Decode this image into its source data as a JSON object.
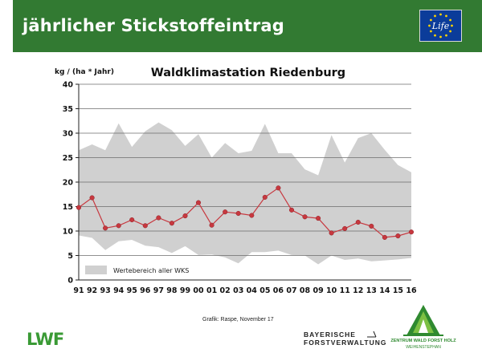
{
  "header": {
    "title": "jährlicher Stickstoffeintrag",
    "band_color": "#327a32",
    "logo_text": "Life",
    "logo_icon": "eu-life-logo"
  },
  "chart_data": {
    "type": "area",
    "title": "Waldklimastation Riedenburg",
    "ylabel": "kg / (ha * Jahr)",
    "xlabel": "",
    "categories": [
      "91",
      "92",
      "93",
      "94",
      "95",
      "96",
      "97",
      "98",
      "99",
      "00",
      "01",
      "02",
      "03",
      "04",
      "05",
      "06",
      "07",
      "08",
      "09",
      "10",
      "11",
      "12",
      "13",
      "14",
      "15",
      "16"
    ],
    "yticks": [
      "0",
      "5",
      "10",
      "15",
      "20",
      "25",
      "30",
      "35",
      "40"
    ],
    "ylim": [
      0,
      40
    ],
    "grid": true,
    "legend": {
      "label": "Wertebereich aller WKS",
      "position": "bottom-left"
    },
    "band": {
      "upper": [
        26.5,
        27.7,
        26.5,
        32.0,
        27.2,
        30.4,
        32.2,
        30.6,
        27.4,
        29.8,
        25.0,
        28.0,
        25.9,
        26.4,
        31.9,
        25.9,
        25.9,
        22.6,
        21.4,
        29.6,
        24.0,
        29.0,
        30.0,
        26.6,
        23.5,
        22.0
      ],
      "lower": [
        9.1,
        8.6,
        6.1,
        7.9,
        8.2,
        7.0,
        6.7,
        5.5,
        6.9,
        5.1,
        5.2,
        4.6,
        3.4,
        5.7,
        5.7,
        6.0,
        5.1,
        5.0,
        3.2,
        5.0,
        4.1,
        4.4,
        3.8,
        4.0,
        4.2,
        4.5
      ],
      "color": "#d0d0d0"
    },
    "series": [
      {
        "values": [
          14.8,
          16.8,
          10.6,
          11.1,
          12.3,
          11.1,
          12.7,
          11.6,
          13.1,
          15.8,
          11.2,
          13.9,
          13.6,
          13.2,
          16.9,
          18.8,
          14.3,
          12.9,
          12.6,
          9.6,
          10.5,
          11.8,
          11.0,
          8.7,
          9.0,
          9.8
        ],
        "color": "#c7383f"
      }
    ]
  },
  "footer": {
    "source": "Grafik: Raspe, November 17",
    "lwf_logo": "LWF",
    "bayern_line1": "BAYERISCHE",
    "bayern_line2": "FORSTVERWALTUNG",
    "zentrum_line1": "ZENTRUM WALD FORST HOLZ",
    "zentrum_line2": "WEIHENSTEPHAN"
  }
}
